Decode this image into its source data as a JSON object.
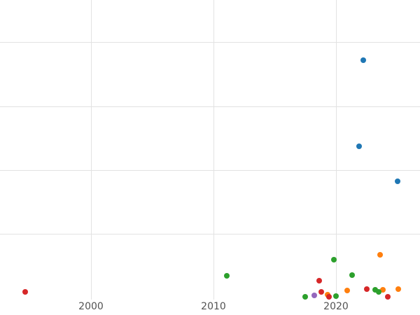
{
  "chart_data": {
    "type": "scatter",
    "title": "",
    "subtitle": "",
    "xlabel": "",
    "ylabel": "",
    "grid": true,
    "legend_position": "none",
    "xlim": [
      1992.57,
      2026.86
    ],
    "ylim": [
      -0.27,
      4.66
    ],
    "x_ticks": [
      {
        "value": 2000,
        "label": "2000"
      },
      {
        "value": 2010,
        "label": "2010"
      },
      {
        "value": 2020,
        "label": "2020"
      }
    ],
    "y_gridline_values": [
      1,
      2,
      3,
      4
    ],
    "colors": {
      "background": "#ffffff",
      "grid": "#e2e2e2",
      "tick_label": "#525252"
    },
    "marker_size_px": 8,
    "series": [
      {
        "name": "series-blue",
        "color": "#1f77b4",
        "points": [
          [
            2022.2,
            3.72
          ],
          [
            2021.9,
            2.37
          ],
          [
            2025.0,
            1.82
          ]
        ]
      },
      {
        "name": "series-orange",
        "color": "#ff7f0e",
        "points": [
          [
            2019.3,
            0.05
          ],
          [
            2020.9,
            0.11
          ],
          [
            2023.6,
            0.67
          ],
          [
            2023.8,
            0.13
          ],
          [
            2025.1,
            0.14
          ]
        ]
      },
      {
        "name": "series-green",
        "color": "#2ca02c",
        "points": [
          [
            2011.1,
            0.34
          ],
          [
            2017.5,
            0.01
          ],
          [
            2019.8,
            0.6
          ],
          [
            2020.0,
            0.03
          ],
          [
            2021.3,
            0.35
          ],
          [
            2023.2,
            0.12
          ],
          [
            2023.5,
            0.09
          ]
        ]
      },
      {
        "name": "series-red",
        "color": "#d62728",
        "points": [
          [
            1994.6,
            0.09
          ],
          [
            2018.6,
            0.27
          ],
          [
            2018.8,
            0.09
          ],
          [
            2019.4,
            0.01
          ],
          [
            2022.5,
            0.14
          ],
          [
            2024.2,
            0.01
          ]
        ]
      },
      {
        "name": "series-purple",
        "color": "#9467bd",
        "points": [
          [
            2018.2,
            0.04
          ]
        ]
      }
    ]
  }
}
